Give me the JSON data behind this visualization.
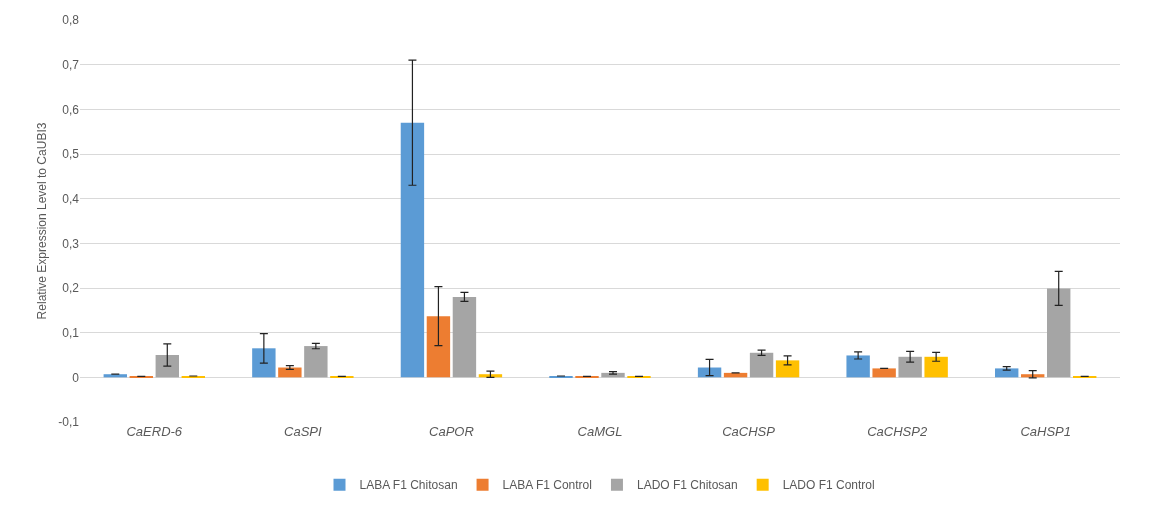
{
  "chart_data": {
    "type": "bar",
    "ylabel": "Relative Expression Level to CaUBI3",
    "categories": [
      "CaERD-6",
      "CaSPI",
      "CaPOR",
      "CaMGL",
      "CaCHSP",
      "CaCHSP2",
      "CaHSP1"
    ],
    "series": [
      {
        "name": "LABA F1 Chitosan",
        "color": "#5b9bd5",
        "values": [
          0.007,
          0.065,
          0.57,
          0.003,
          0.022,
          0.049,
          0.02
        ],
        "errors": [
          null,
          0.033,
          0.14,
          null,
          0.018,
          0.008,
          0.004
        ]
      },
      {
        "name": "LABA F1 Control",
        "color": "#ed7d31",
        "values": [
          0.002,
          0.022,
          0.137,
          0.002,
          0.01,
          0.02,
          0.007
        ],
        "errors": [
          null,
          0.004,
          0.066,
          null,
          null,
          null,
          0.008
        ]
      },
      {
        "name": "LADO F1 Chitosan",
        "color": "#a5a5a5",
        "values": [
          0.05,
          0.07,
          0.18,
          0.01,
          0.055,
          0.046,
          0.199
        ],
        "errors": [
          0.025,
          0.006,
          0.01,
          0.003,
          0.006,
          0.012,
          0.038
        ]
      },
      {
        "name": "LADO F1 Control",
        "color": "#ffc000",
        "values": [
          0.003,
          0.002,
          0.007,
          0.002,
          0.038,
          0.046,
          0.002
        ],
        "errors": [
          null,
          null,
          0.007,
          null,
          0.01,
          0.01,
          null
        ]
      }
    ],
    "ylim": [
      -0.1,
      0.8
    ],
    "yticks": [
      {
        "value": -0.1,
        "label": "-0,1"
      },
      0,
      {
        "value": 0.1,
        "label": "0,1"
      },
      {
        "value": 0.2,
        "label": "0,2"
      },
      {
        "value": 0.3,
        "label": "0,3"
      },
      {
        "value": 0.4,
        "label": "0,4"
      },
      {
        "value": 0.5,
        "label": "0,5"
      },
      {
        "value": 0.6,
        "label": "0,6"
      },
      {
        "value": 0.7,
        "label": "0,7"
      },
      {
        "value": 0.8,
        "label": "0,8"
      }
    ],
    "grid": "y",
    "legend": "bottom"
  }
}
